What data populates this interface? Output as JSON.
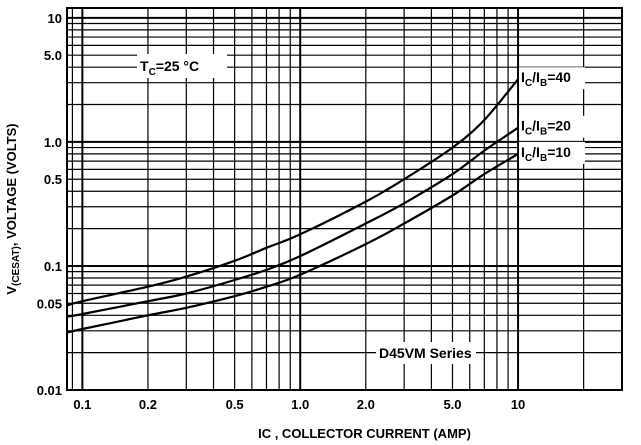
{
  "chart_data": {
    "type": "line",
    "title": "",
    "xlabel": "IC , COLLECTOR CURRENT (AMP)",
    "ylabel": {
      "main": "V",
      "sub": "(CESAT)",
      "rest": ", VOLTAGE (VOLTS)"
    },
    "x_scale": "log",
    "y_scale": "log",
    "xlim": [
      0.085,
      30
    ],
    "ylim": [
      0.01,
      12
    ],
    "grid": true,
    "x_ticks": [
      {
        "value": 0.1,
        "label": "0.1"
      },
      {
        "value": 0.2,
        "label": "0.2"
      },
      {
        "value": 0.5,
        "label": "0.5"
      },
      {
        "value": 1,
        "label": "1.0"
      },
      {
        "value": 2,
        "label": "2.0"
      },
      {
        "value": 5,
        "label": "5.0"
      },
      {
        "value": 10,
        "label": "10"
      }
    ],
    "y_ticks": [
      {
        "value": 0.01,
        "label": "0.01"
      },
      {
        "value": 0.05,
        "label": "0.05"
      },
      {
        "value": 0.1,
        "label": "0.1"
      },
      {
        "value": 0.5,
        "label": "0.5"
      },
      {
        "value": 1,
        "label": "1.0"
      },
      {
        "value": 5,
        "label": "5.0"
      },
      {
        "value": 10,
        "label": "10"
      }
    ],
    "annotations": {
      "temperature": {
        "main": "T",
        "sub": "C",
        "rest": "=25 °C"
      },
      "series_note": "D45VM Series"
    },
    "series": [
      {
        "name": {
          "main": "I",
          "sub": "C",
          "sep": "/I",
          "sub2": "B",
          "rest": "=40"
        },
        "x": [
          0.085,
          0.1,
          0.2,
          0.3,
          0.5,
          0.7,
          1,
          2,
          3,
          5,
          7,
          10
        ],
        "y": [
          0.048,
          0.052,
          0.068,
          0.082,
          0.11,
          0.14,
          0.18,
          0.33,
          0.5,
          0.9,
          1.5,
          3.2
        ]
      },
      {
        "name": {
          "main": "I",
          "sub": "C",
          "sep": "/I",
          "sub2": "B",
          "rest": "=20"
        },
        "x": [
          0.085,
          0.1,
          0.2,
          0.3,
          0.5,
          0.7,
          1,
          2,
          3,
          5,
          7,
          10
        ],
        "y": [
          0.039,
          0.041,
          0.052,
          0.06,
          0.077,
          0.093,
          0.12,
          0.22,
          0.32,
          0.55,
          0.85,
          1.3
        ]
      },
      {
        "name": {
          "main": "I",
          "sub": "C",
          "sep": "/I",
          "sub2": "B",
          "rest": "=10"
        },
        "x": [
          0.085,
          0.1,
          0.2,
          0.3,
          0.5,
          0.7,
          1,
          2,
          3,
          5,
          7,
          10
        ],
        "y": [
          0.029,
          0.031,
          0.04,
          0.046,
          0.057,
          0.068,
          0.085,
          0.15,
          0.22,
          0.37,
          0.55,
          0.8
        ]
      }
    ]
  }
}
